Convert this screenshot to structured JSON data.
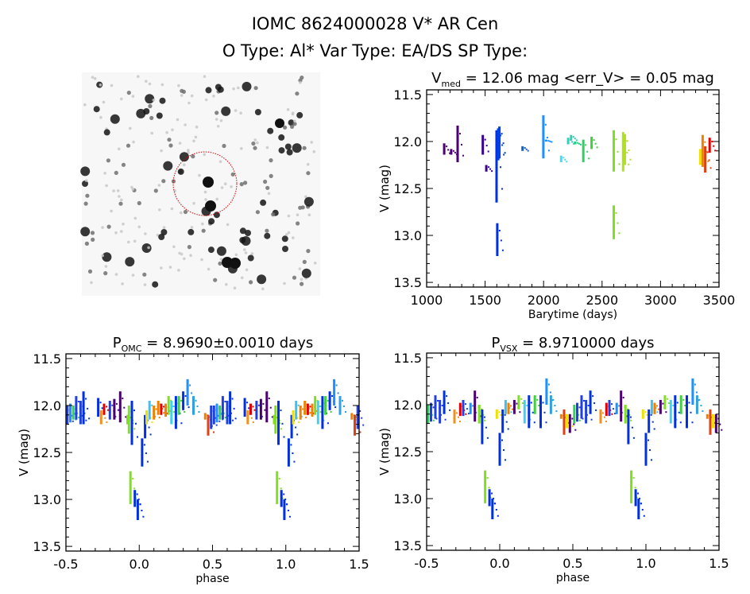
{
  "header": {
    "title": "IOMC 8624000028    V* AR Cen",
    "subtitle": "O Type: Al*  Var Type: EA/DS  SP Type:"
  },
  "finder_image": {
    "description_icon": "star-field-image",
    "circle_color": "#cc0000"
  },
  "chart_data": [
    {
      "type": "scatter",
      "title_main": "V",
      "title_sub": "med",
      "title_rest": " = 12.06 mag <err_V> = 0.05 mag",
      "xlabel": "Barytime (days)",
      "ylabel": "V (mag)",
      "xlim": [
        1000,
        3500
      ],
      "ylim": [
        13.55,
        11.45
      ],
      "y_inverted": true,
      "xticks": [
        1000,
        1500,
        2000,
        2500,
        3000,
        3500
      ],
      "xtick_labels": [
        "1000",
        "1500",
        "2000",
        "2500",
        "3000",
        "3500"
      ],
      "yticks": [
        11.5,
        12.0,
        12.5,
        13.0,
        13.5
      ],
      "ytick_labels": [
        "11.5",
        "12.0",
        "12.5",
        "13.0",
        "13.5"
      ],
      "segments": [
        {
          "x": 1150,
          "vmin": 12.02,
          "vmax": 12.14,
          "color": "#4b0070"
        },
        {
          "x": 1210,
          "vmin": 12.08,
          "vmax": 12.14,
          "color": "#4b0070"
        },
        {
          "x": 1265,
          "vmin": 11.83,
          "vmax": 12.22,
          "color": "#4b0070"
        },
        {
          "x": 1480,
          "vmin": 11.93,
          "vmax": 12.14,
          "color": "#3a0090"
        },
        {
          "x": 1510,
          "vmin": 12.25,
          "vmax": 12.32,
          "color": "#3a0090"
        },
        {
          "x": 1598,
          "vmin": 11.88,
          "vmax": 12.65,
          "color": "#0030e0"
        },
        {
          "x": 1604,
          "vmin": 12.87,
          "vmax": 13.22,
          "color": "#0030e0"
        },
        {
          "x": 1612,
          "vmin": 11.86,
          "vmax": 12.2,
          "color": "#0040e8"
        },
        {
          "x": 1622,
          "vmin": 11.84,
          "vmax": 12.18,
          "color": "#0040e8"
        },
        {
          "x": 1820,
          "vmin": 12.05,
          "vmax": 12.1,
          "color": "#2060b0"
        },
        {
          "x": 1998,
          "vmin": 11.72,
          "vmax": 12.18,
          "color": "#1e90ff"
        },
        {
          "x": 2022,
          "vmin": 11.98,
          "vmax": 12.0,
          "color": "#1e90ff"
        },
        {
          "x": 2150,
          "vmin": 12.15,
          "vmax": 12.22,
          "color": "#40e0f0"
        },
        {
          "x": 2210,
          "vmin": 11.96,
          "vmax": 12.03,
          "color": "#30d0c0"
        },
        {
          "x": 2235,
          "vmin": 11.93,
          "vmax": 11.99,
          "color": "#30d0b0"
        },
        {
          "x": 2270,
          "vmin": 12.0,
          "vmax": 12.03,
          "color": "#20d080"
        },
        {
          "x": 2340,
          "vmin": 11.98,
          "vmax": 12.22,
          "color": "#30d060"
        },
        {
          "x": 2410,
          "vmin": 11.95,
          "vmax": 12.08,
          "color": "#40d040"
        },
        {
          "x": 2600,
          "vmin": 11.88,
          "vmax": 12.32,
          "color": "#80e020"
        },
        {
          "x": 2600,
          "vmin": 12.68,
          "vmax": 13.04,
          "color": "#80e020"
        },
        {
          "x": 2680,
          "vmin": 11.9,
          "vmax": 12.32,
          "color": "#b0e020"
        },
        {
          "x": 2695,
          "vmin": 11.92,
          "vmax": 12.25,
          "color": "#b0e020"
        },
        {
          "x": 3340,
          "vmin": 12.08,
          "vmax": 12.25,
          "color": "#f0e000"
        },
        {
          "x": 3360,
          "vmin": 11.93,
          "vmax": 12.27,
          "color": "#f08000"
        },
        {
          "x": 3382,
          "vmin": 12.05,
          "vmax": 12.33,
          "color": "#e04010"
        },
        {
          "x": 3420,
          "vmin": 11.96,
          "vmax": 12.12,
          "color": "#e00000"
        }
      ]
    },
    {
      "type": "scatter",
      "title_main": "P",
      "title_sub": "OMC",
      "title_rest": " = 8.9690±0.0010 days",
      "xlabel": "phase",
      "ylabel": "V (mag)",
      "xlim": [
        -0.5,
        1.5
      ],
      "ylim": [
        13.55,
        11.45
      ],
      "y_inverted": true,
      "xticks": [
        -0.5,
        0.0,
        0.5,
        1.0,
        1.5
      ],
      "xtick_labels": [
        "-0.5",
        "0.0",
        "0.5",
        "1.0",
        "1.5"
      ],
      "yticks": [
        11.5,
        12.0,
        12.5,
        13.0,
        13.5
      ],
      "ytick_labels": [
        "11.5",
        "12.0",
        "12.5",
        "13.0",
        "13.5"
      ],
      "phase_repeat": 1.0,
      "segments": [
        {
          "x": -0.49,
          "vmin": 12.0,
          "vmax": 12.2,
          "color": "#2040e0"
        },
        {
          "x": -0.47,
          "vmin": 11.98,
          "vmax": 12.18,
          "color": "#1e90ff"
        },
        {
          "x": -0.45,
          "vmin": 12.0,
          "vmax": 12.15,
          "color": "#30d060"
        },
        {
          "x": -0.43,
          "vmin": 11.9,
          "vmax": 12.15,
          "color": "#2040e0"
        },
        {
          "x": -0.4,
          "vmin": 11.95,
          "vmax": 12.2,
          "color": "#2040e0"
        },
        {
          "x": -0.38,
          "vmin": 11.85,
          "vmax": 12.2,
          "color": "#0030e0"
        },
        {
          "x": -0.28,
          "vmin": 11.92,
          "vmax": 12.12,
          "color": "#0030e0"
        },
        {
          "x": -0.26,
          "vmin": 12.05,
          "vmax": 12.2,
          "color": "#f09020"
        },
        {
          "x": -0.24,
          "vmin": 11.98,
          "vmax": 12.1,
          "color": "#e00000"
        },
        {
          "x": -0.2,
          "vmin": 11.95,
          "vmax": 12.15,
          "color": "#2040e0"
        },
        {
          "x": -0.17,
          "vmin": 11.93,
          "vmax": 12.15,
          "color": "#4b0070"
        },
        {
          "x": -0.13,
          "vmin": 11.85,
          "vmax": 12.18,
          "color": "#4b0070"
        },
        {
          "x": -0.08,
          "vmin": 12.1,
          "vmax": 12.2,
          "color": "#80e020"
        },
        {
          "x": -0.07,
          "vmin": 12.0,
          "vmax": 12.3,
          "color": "#80e020"
        },
        {
          "x": -0.06,
          "vmin": 12.7,
          "vmax": 13.05,
          "color": "#80e020"
        },
        {
          "x": -0.05,
          "vmin": 11.95,
          "vmax": 12.42,
          "color": "#0030e0"
        },
        {
          "x": -0.03,
          "vmin": 12.9,
          "vmax": 13.08,
          "color": "#0030e0"
        },
        {
          "x": -0.01,
          "vmin": 13.0,
          "vmax": 13.22,
          "color": "#0030e0"
        },
        {
          "x": 0.02,
          "vmin": 12.35,
          "vmax": 12.65,
          "color": "#0030e0"
        },
        {
          "x": 0.04,
          "vmin": 12.1,
          "vmax": 12.35,
          "color": "#0030e0"
        },
        {
          "x": 0.05,
          "vmin": 12.05,
          "vmax": 12.2,
          "color": "#f0e000"
        },
        {
          "x": 0.07,
          "vmin": 11.95,
          "vmax": 12.15,
          "color": "#40c0f0"
        },
        {
          "x": 0.1,
          "vmin": 12.0,
          "vmax": 12.15,
          "color": "#f08000"
        },
        {
          "x": 0.13,
          "vmin": 11.95,
          "vmax": 12.1,
          "color": "#f08000"
        },
        {
          "x": 0.15,
          "vmin": 11.98,
          "vmax": 12.1,
          "color": "#e00000"
        },
        {
          "x": 0.18,
          "vmin": 11.98,
          "vmax": 12.12,
          "color": "#f08000"
        },
        {
          "x": 0.2,
          "vmin": 11.9,
          "vmax": 12.1,
          "color": "#80e020"
        },
        {
          "x": 0.22,
          "vmin": 11.95,
          "vmax": 12.2,
          "color": "#40d0f0"
        },
        {
          "x": 0.25,
          "vmin": 11.9,
          "vmax": 12.25,
          "color": "#0030e0"
        },
        {
          "x": 0.27,
          "vmin": 11.9,
          "vmax": 12.1,
          "color": "#40d040"
        },
        {
          "x": 0.3,
          "vmin": 11.85,
          "vmax": 12.05,
          "color": "#0030e0"
        },
        {
          "x": 0.33,
          "vmin": 11.72,
          "vmax": 12.0,
          "color": "#1e90ff"
        },
        {
          "x": 0.37,
          "vmin": 11.9,
          "vmax": 12.1,
          "color": "#30a0e0"
        },
        {
          "x": 0.45,
          "vmin": 12.08,
          "vmax": 12.15,
          "color": "#f08000"
        },
        {
          "x": 0.47,
          "vmin": 12.1,
          "vmax": 12.32,
          "color": "#e04010"
        },
        {
          "x": 0.49,
          "vmin": 12.0,
          "vmax": 12.25,
          "color": "#2040e0"
        }
      ]
    },
    {
      "type": "scatter",
      "title_main": "P",
      "title_sub": "VSX",
      "title_rest": " = 8.9710000 days",
      "xlabel": "phase",
      "ylabel": "V (mag)",
      "xlim": [
        -0.5,
        1.5
      ],
      "ylim": [
        13.55,
        11.45
      ],
      "y_inverted": true,
      "xticks": [
        -0.5,
        0.0,
        0.5,
        1.0,
        1.5
      ],
      "xtick_labels": [
        "-0.5",
        "0.0",
        "0.5",
        "1.0",
        "1.5"
      ],
      "yticks": [
        11.5,
        12.0,
        12.5,
        13.0,
        13.5
      ],
      "ytick_labels": [
        "11.5",
        "12.0",
        "12.5",
        "13.0",
        "13.5"
      ],
      "phase_repeat": 1.0,
      "segments": [
        {
          "x": -0.49,
          "vmin": 12.0,
          "vmax": 12.2,
          "color": "#30d060"
        },
        {
          "x": -0.47,
          "vmin": 11.98,
          "vmax": 12.18,
          "color": "#2040e0"
        },
        {
          "x": -0.44,
          "vmin": 11.9,
          "vmax": 12.15,
          "color": "#2040e0"
        },
        {
          "x": -0.41,
          "vmin": 11.95,
          "vmax": 12.2,
          "color": "#2040e0"
        },
        {
          "x": -0.38,
          "vmin": 11.85,
          "vmax": 12.1,
          "color": "#0030e0"
        },
        {
          "x": -0.31,
          "vmin": 12.05,
          "vmax": 12.2,
          "color": "#f09020"
        },
        {
          "x": -0.27,
          "vmin": 11.98,
          "vmax": 12.12,
          "color": "#e00000"
        },
        {
          "x": -0.25,
          "vmin": 11.95,
          "vmax": 12.12,
          "color": "#2040e0"
        },
        {
          "x": -0.2,
          "vmin": 11.98,
          "vmax": 12.1,
          "color": "#1e90ff"
        },
        {
          "x": -0.17,
          "vmin": 11.85,
          "vmax": 12.18,
          "color": "#4b0070"
        },
        {
          "x": -0.14,
          "vmin": 12.0,
          "vmax": 12.2,
          "color": "#80e020"
        },
        {
          "x": -0.12,
          "vmin": 12.05,
          "vmax": 12.42,
          "color": "#0030e0"
        },
        {
          "x": -0.1,
          "vmin": 12.7,
          "vmax": 13.05,
          "color": "#80e020"
        },
        {
          "x": -0.07,
          "vmin": 12.9,
          "vmax": 13.08,
          "color": "#0030e0"
        },
        {
          "x": -0.05,
          "vmin": 13.0,
          "vmax": 13.22,
          "color": "#0030e0"
        },
        {
          "x": -0.02,
          "vmin": 12.05,
          "vmax": 12.15,
          "color": "#f0e000"
        },
        {
          "x": 0.0,
          "vmin": 12.3,
          "vmax": 12.65,
          "color": "#0030e0"
        },
        {
          "x": 0.02,
          "vmin": 12.05,
          "vmax": 12.3,
          "color": "#0030e0"
        },
        {
          "x": 0.04,
          "vmin": 11.95,
          "vmax": 12.1,
          "color": "#40c0f0"
        },
        {
          "x": 0.06,
          "vmin": 11.98,
          "vmax": 12.1,
          "color": "#f08000"
        },
        {
          "x": 0.1,
          "vmin": 11.95,
          "vmax": 12.1,
          "color": "#4b0070"
        },
        {
          "x": 0.13,
          "vmin": 11.9,
          "vmax": 12.05,
          "color": "#80e020"
        },
        {
          "x": 0.17,
          "vmin": 11.95,
          "vmax": 12.2,
          "color": "#40d0f0"
        },
        {
          "x": 0.2,
          "vmin": 11.9,
          "vmax": 12.25,
          "color": "#0030e0"
        },
        {
          "x": 0.24,
          "vmin": 11.9,
          "vmax": 12.1,
          "color": "#40d040"
        },
        {
          "x": 0.28,
          "vmin": 11.9,
          "vmax": 12.25,
          "color": "#0030e0"
        },
        {
          "x": 0.32,
          "vmin": 11.72,
          "vmax": 12.0,
          "color": "#1e90ff"
        },
        {
          "x": 0.35,
          "vmin": 11.9,
          "vmax": 12.1,
          "color": "#30a0e0"
        },
        {
          "x": 0.42,
          "vmin": 12.1,
          "vmax": 12.15,
          "color": "#f08000"
        },
        {
          "x": 0.44,
          "vmin": 12.05,
          "vmax": 12.32,
          "color": "#e04010"
        },
        {
          "x": 0.46,
          "vmin": 12.1,
          "vmax": 12.25,
          "color": "#f0e000"
        },
        {
          "x": 0.48,
          "vmin": 12.1,
          "vmax": 12.3,
          "color": "#4b0070"
        }
      ]
    }
  ]
}
